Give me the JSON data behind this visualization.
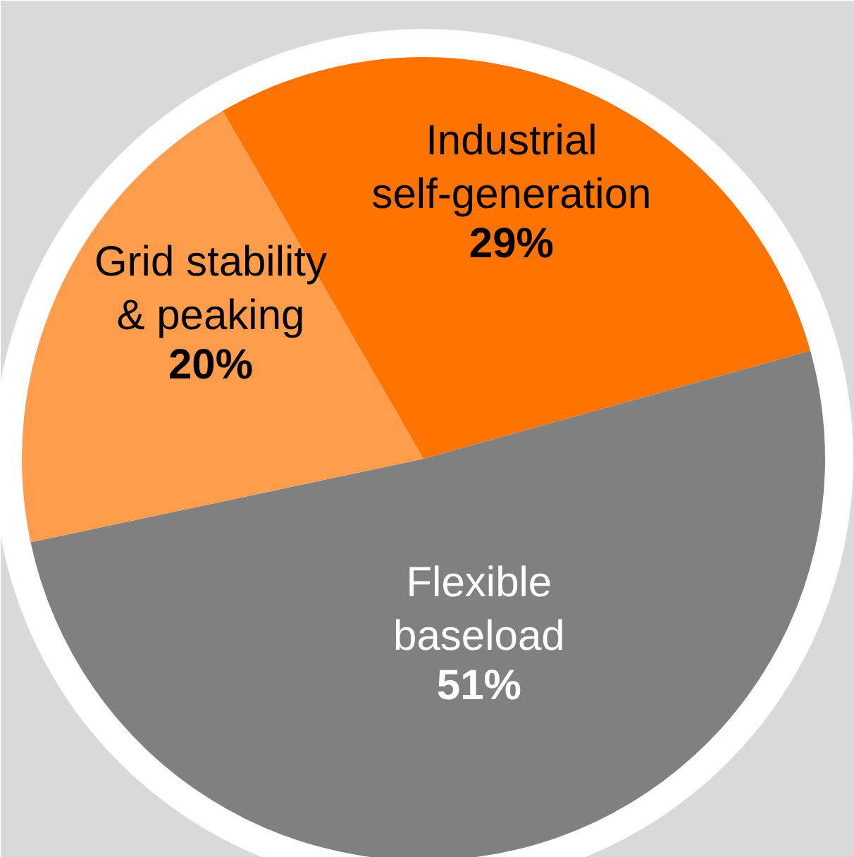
{
  "chart_data": {
    "type": "pie",
    "categories": [
      "Industrial self-generation",
      "Flexible baseload",
      "Grid stability & peaking"
    ],
    "values": [
      29,
      51,
      20
    ],
    "colors": [
      "#ff7300",
      "#808080",
      "#ff9d4d"
    ],
    "value_labels": [
      "29%",
      "51%",
      "20%"
    ],
    "legend": false
  }
}
